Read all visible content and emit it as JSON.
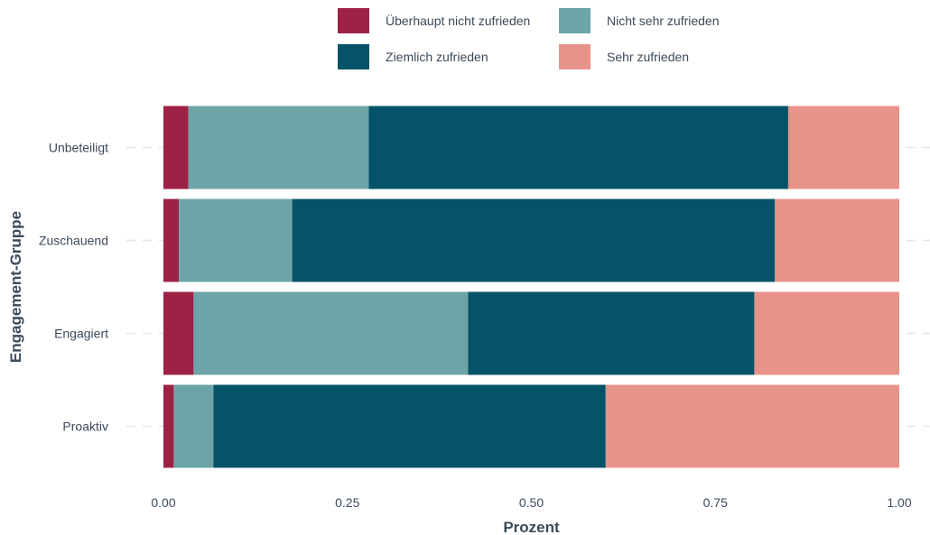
{
  "chart_data": {
    "type": "bar",
    "orientation": "horizontal",
    "stacked": true,
    "xlabel": "Prozent",
    "ylabel": "Engagement-Gruppe",
    "xlim": [
      0,
      1
    ],
    "xticks": [
      "0.00",
      "0.25",
      "0.50",
      "0.75",
      "1.00"
    ],
    "categories": [
      "Unbeteiligt",
      "Zuschauend",
      "Engagiert",
      "Proaktiv"
    ],
    "legend_position": "top",
    "grid": true,
    "series": [
      {
        "name": "Überhaupt nicht zufrieden",
        "color": "#9e2246",
        "values": [
          0.034,
          0.021,
          0.041,
          0.014
        ]
      },
      {
        "name": "Nicht sehr zufrieden",
        "color": "#6da4a7",
        "values": [
          0.245,
          0.154,
          0.373,
          0.054
        ]
      },
      {
        "name": "Ziemlich zufrieden",
        "color": "#045368",
        "values": [
          0.57,
          0.656,
          0.389,
          0.533
        ]
      },
      {
        "name": "Sehr zufrieden",
        "color": "#e8938a",
        "values": [
          0.151,
          0.169,
          0.197,
          0.399
        ]
      }
    ]
  }
}
